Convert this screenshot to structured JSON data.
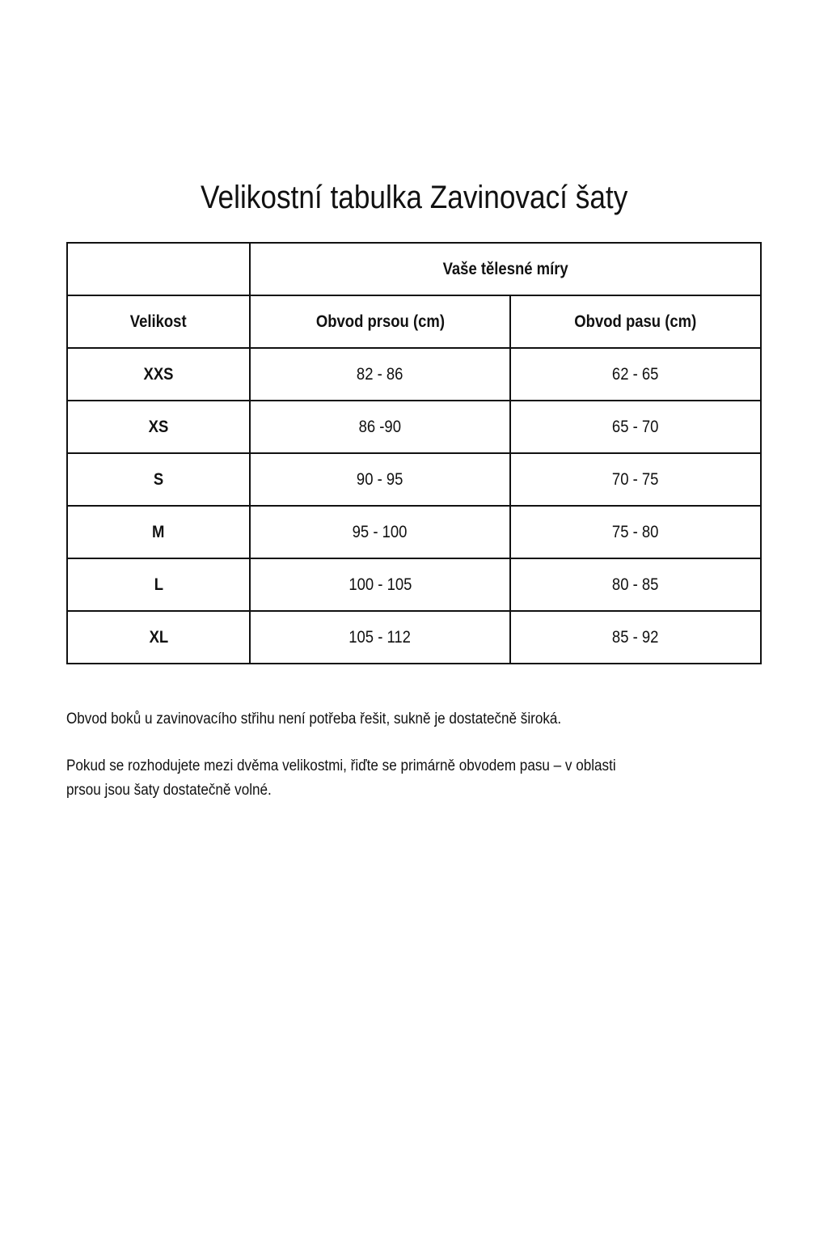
{
  "title": "Velikostní tabulka Zavinovací šaty",
  "table": {
    "group_header": "Vaše tělesné míry",
    "columns": [
      "Velikost",
      "Obvod prsou (cm)",
      "Obvod pasu (cm)"
    ],
    "rows": [
      [
        "XXS",
        "82 - 86",
        "62 - 65"
      ],
      [
        "XS",
        "86 -90",
        "65 - 70"
      ],
      [
        "S",
        "90 - 95",
        "70 - 75"
      ],
      [
        "M",
        "95 - 100",
        "75 - 80"
      ],
      [
        "L",
        "100 - 105",
        "80 - 85"
      ],
      [
        "XL",
        "105 - 112",
        "85 - 92"
      ]
    ]
  },
  "notes": [
    "Obvod boků u zavinovacího střihu není potřeba řešit, sukně je dostatečně široká.",
    "Pokud se rozhodujete mezi dvěma velikostmi, řiďte se primárně obvodem pasu – v oblasti",
    "prsou jsou šaty dostatečně volné."
  ]
}
